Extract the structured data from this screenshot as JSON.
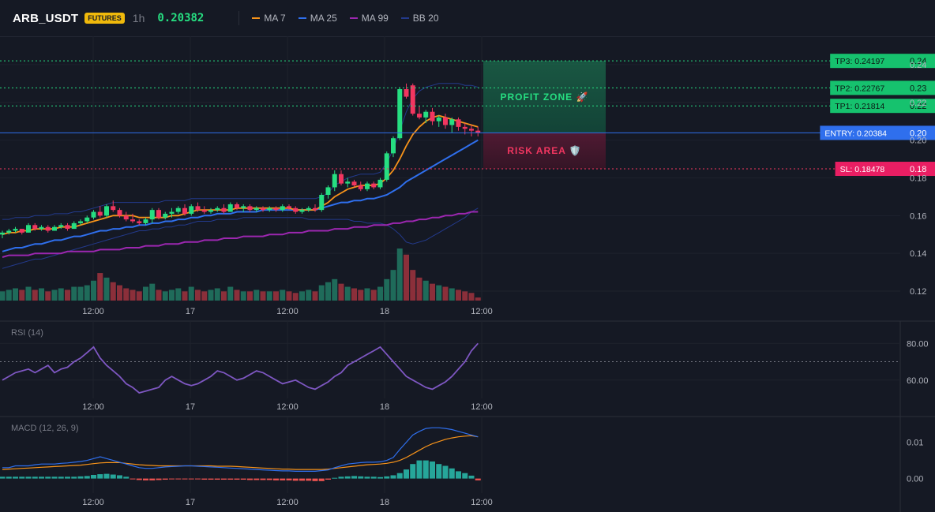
{
  "header": {
    "symbol": "ARB_USDT",
    "badge": "FUTURES",
    "timeframe": "1h",
    "price": "0.20382",
    "legend": [
      {
        "label": "MA 7",
        "color": "#f7931a"
      },
      {
        "label": "MA 25",
        "color": "#2f6fed"
      },
      {
        "label": "MA 99",
        "color": "#9c27b0"
      },
      {
        "label": "BB 20",
        "color": "#233a8c"
      }
    ]
  },
  "colors": {
    "up": "#26de81",
    "down": "#f23660",
    "vol_up": "#1f6b5a",
    "vol_down": "#8b2f3a",
    "entry": "#2f6fed",
    "tp": "#26de81",
    "sl": "#f23660"
  },
  "levels": {
    "tp3": {
      "label": "TP3: 0.24197",
      "axis": "0.24",
      "value": 0.24197
    },
    "tp2": {
      "label": "TP2: 0.22767",
      "axis": "0.23",
      "value": 0.22767
    },
    "tp1": {
      "label": "TP1: 0.21814",
      "axis": "0.22",
      "value": 0.21814
    },
    "entry": {
      "label": "ENTRY: 0.20384",
      "axis": "0.20",
      "value": 0.20384
    },
    "sl": {
      "label": "SL: 0.18478",
      "axis": "0.18",
      "value": 0.18478
    }
  },
  "zones": {
    "profit": {
      "label": "PROFIT ZONE 🚀"
    },
    "risk": {
      "label": "RISK AREA 🛡️"
    }
  },
  "x_axis_labels": [
    "12:00",
    "17",
    "12:00",
    "18",
    "12:00"
  ],
  "chart_data": [
    {
      "type": "candlestick",
      "ylim": [
        0.115,
        0.255
      ],
      "y_ticks": [
        "0.12",
        "0.14",
        "0.16",
        "0.18",
        "0.20",
        "0.22",
        "0.24"
      ],
      "candles": [
        [
          0.15,
          0.152,
          0.148,
          0.151
        ],
        [
          0.151,
          0.153,
          0.15,
          0.152
        ],
        [
          0.152,
          0.154,
          0.151,
          0.153
        ],
        [
          0.153,
          0.153,
          0.15,
          0.151
        ],
        [
          0.151,
          0.156,
          0.151,
          0.155
        ],
        [
          0.155,
          0.156,
          0.152,
          0.153
        ],
        [
          0.153,
          0.155,
          0.152,
          0.154
        ],
        [
          0.154,
          0.155,
          0.151,
          0.152
        ],
        [
          0.152,
          0.155,
          0.152,
          0.154
        ],
        [
          0.154,
          0.156,
          0.153,
          0.155
        ],
        [
          0.155,
          0.156,
          0.152,
          0.153
        ],
        [
          0.153,
          0.157,
          0.153,
          0.156
        ],
        [
          0.156,
          0.158,
          0.155,
          0.157
        ],
        [
          0.157,
          0.16,
          0.156,
          0.159
        ],
        [
          0.159,
          0.163,
          0.158,
          0.162
        ],
        [
          0.162,
          0.165,
          0.159,
          0.16
        ],
        [
          0.16,
          0.166,
          0.159,
          0.165
        ],
        [
          0.165,
          0.168,
          0.162,
          0.163
        ],
        [
          0.163,
          0.164,
          0.159,
          0.16
        ],
        [
          0.16,
          0.162,
          0.157,
          0.158
        ],
        [
          0.158,
          0.161,
          0.156,
          0.157
        ],
        [
          0.157,
          0.158,
          0.155,
          0.156
        ],
        [
          0.156,
          0.159,
          0.155,
          0.158
        ],
        [
          0.158,
          0.164,
          0.156,
          0.163
        ],
        [
          0.163,
          0.164,
          0.158,
          0.159
        ],
        [
          0.159,
          0.162,
          0.158,
          0.161
        ],
        [
          0.161,
          0.164,
          0.159,
          0.162
        ],
        [
          0.162,
          0.165,
          0.161,
          0.164
        ],
        [
          0.164,
          0.166,
          0.16,
          0.161
        ],
        [
          0.161,
          0.166,
          0.16,
          0.165
        ],
        [
          0.165,
          0.167,
          0.162,
          0.163
        ],
        [
          0.163,
          0.165,
          0.161,
          0.162
        ],
        [
          0.162,
          0.164,
          0.161,
          0.163
        ],
        [
          0.163,
          0.165,
          0.162,
          0.164
        ],
        [
          0.164,
          0.166,
          0.161,
          0.162
        ],
        [
          0.162,
          0.167,
          0.162,
          0.166
        ],
        [
          0.166,
          0.167,
          0.163,
          0.164
        ],
        [
          0.164,
          0.166,
          0.162,
          0.165
        ],
        [
          0.165,
          0.166,
          0.162,
          0.163
        ],
        [
          0.163,
          0.165,
          0.162,
          0.164
        ],
        [
          0.164,
          0.165,
          0.162,
          0.163
        ],
        [
          0.163,
          0.165,
          0.162,
          0.164
        ],
        [
          0.164,
          0.165,
          0.162,
          0.163
        ],
        [
          0.163,
          0.166,
          0.162,
          0.165
        ],
        [
          0.165,
          0.166,
          0.163,
          0.164
        ],
        [
          0.164,
          0.165,
          0.161,
          0.162
        ],
        [
          0.162,
          0.164,
          0.161,
          0.163
        ],
        [
          0.163,
          0.165,
          0.162,
          0.164
        ],
        [
          0.164,
          0.166,
          0.162,
          0.163
        ],
        [
          0.163,
          0.172,
          0.162,
          0.171
        ],
        [
          0.171,
          0.176,
          0.169,
          0.175
        ],
        [
          0.175,
          0.184,
          0.173,
          0.182
        ],
        [
          0.182,
          0.184,
          0.176,
          0.177
        ],
        [
          0.177,
          0.18,
          0.175,
          0.178
        ],
        [
          0.178,
          0.179,
          0.175,
          0.176
        ],
        [
          0.176,
          0.178,
          0.173,
          0.174
        ],
        [
          0.174,
          0.178,
          0.173,
          0.177
        ],
        [
          0.177,
          0.178,
          0.174,
          0.175
        ],
        [
          0.175,
          0.18,
          0.174,
          0.179
        ],
        [
          0.179,
          0.194,
          0.178,
          0.193
        ],
        [
          0.193,
          0.202,
          0.191,
          0.201
        ],
        [
          0.201,
          0.228,
          0.2,
          0.227
        ],
        [
          0.227,
          0.23,
          0.222,
          0.223
        ],
        [
          0.229,
          0.23,
          0.213,
          0.214
        ],
        [
          0.214,
          0.218,
          0.211,
          0.212
        ],
        [
          0.212,
          0.216,
          0.209,
          0.215
        ],
        [
          0.215,
          0.217,
          0.208,
          0.21
        ],
        [
          0.21,
          0.213,
          0.207,
          0.212
        ],
        [
          0.212,
          0.214,
          0.206,
          0.208
        ],
        [
          0.208,
          0.212,
          0.204,
          0.211
        ],
        [
          0.211,
          0.212,
          0.205,
          0.207
        ],
        [
          0.207,
          0.209,
          0.203,
          0.206
        ],
        [
          0.206,
          0.208,
          0.202,
          0.205
        ],
        [
          0.205,
          0.207,
          0.202,
          0.204
        ]
      ],
      "volumes": [
        6,
        7,
        8,
        7,
        9,
        7,
        8,
        6,
        7,
        8,
        7,
        9,
        9,
        10,
        13,
        18,
        15,
        12,
        10,
        8,
        7,
        6,
        9,
        11,
        7,
        6,
        7,
        8,
        6,
        9,
        7,
        6,
        7,
        8,
        6,
        9,
        7,
        6,
        6,
        7,
        6,
        6,
        6,
        7,
        6,
        5,
        6,
        7,
        6,
        10,
        12,
        14,
        11,
        9,
        8,
        7,
        8,
        7,
        9,
        14,
        20,
        34,
        30,
        20,
        15,
        13,
        11,
        10,
        9,
        8,
        7,
        6,
        5,
        2
      ],
      "ma7": [
        0.15,
        0.151,
        0.151,
        0.152,
        0.152,
        0.153,
        0.153,
        0.153,
        0.153,
        0.154,
        0.154,
        0.154,
        0.155,
        0.156,
        0.157,
        0.158,
        0.159,
        0.16,
        0.16,
        0.16,
        0.16,
        0.159,
        0.159,
        0.159,
        0.159,
        0.159,
        0.16,
        0.16,
        0.161,
        0.162,
        0.163,
        0.163,
        0.163,
        0.163,
        0.163,
        0.163,
        0.164,
        0.164,
        0.164,
        0.164,
        0.164,
        0.164,
        0.164,
        0.164,
        0.164,
        0.163,
        0.163,
        0.163,
        0.163,
        0.165,
        0.167,
        0.17,
        0.172,
        0.174,
        0.175,
        0.176,
        0.176,
        0.176,
        0.177,
        0.18,
        0.184,
        0.19,
        0.197,
        0.203,
        0.207,
        0.21,
        0.212,
        0.213,
        0.212,
        0.211,
        0.21,
        0.209,
        0.208,
        0.207
      ],
      "ma25": [
        0.141,
        0.142,
        0.143,
        0.143,
        0.144,
        0.145,
        0.145,
        0.146,
        0.147,
        0.147,
        0.148,
        0.149,
        0.149,
        0.15,
        0.151,
        0.152,
        0.152,
        0.153,
        0.153,
        0.154,
        0.154,
        0.155,
        0.155,
        0.156,
        0.156,
        0.157,
        0.157,
        0.158,
        0.158,
        0.159,
        0.159,
        0.16,
        0.16,
        0.161,
        0.161,
        0.161,
        0.162,
        0.162,
        0.162,
        0.162,
        0.163,
        0.163,
        0.163,
        0.163,
        0.163,
        0.163,
        0.163,
        0.163,
        0.163,
        0.164,
        0.165,
        0.166,
        0.167,
        0.167,
        0.168,
        0.168,
        0.169,
        0.169,
        0.17,
        0.171,
        0.173,
        0.175,
        0.178,
        0.18,
        0.182,
        0.184,
        0.186,
        0.188,
        0.19,
        0.192,
        0.194,
        0.196,
        0.198,
        0.2
      ],
      "ma99": [
        0.138,
        0.139,
        0.139,
        0.139,
        0.139,
        0.14,
        0.14,
        0.14,
        0.14,
        0.14,
        0.141,
        0.141,
        0.141,
        0.141,
        0.141,
        0.142,
        0.142,
        0.142,
        0.142,
        0.143,
        0.143,
        0.143,
        0.144,
        0.144,
        0.144,
        0.145,
        0.145,
        0.145,
        0.146,
        0.146,
        0.146,
        0.147,
        0.147,
        0.147,
        0.148,
        0.148,
        0.148,
        0.149,
        0.149,
        0.149,
        0.149,
        0.15,
        0.15,
        0.15,
        0.151,
        0.151,
        0.151,
        0.152,
        0.152,
        0.152,
        0.152,
        0.153,
        0.153,
        0.153,
        0.154,
        0.154,
        0.154,
        0.155,
        0.155,
        0.155,
        0.156,
        0.156,
        0.157,
        0.157,
        0.158,
        0.158,
        0.159,
        0.159,
        0.16,
        0.16,
        0.161,
        0.161,
        0.162,
        0.162
      ],
      "bb_upper": [
        0.158,
        0.158,
        0.159,
        0.159,
        0.159,
        0.16,
        0.16,
        0.16,
        0.161,
        0.161,
        0.161,
        0.162,
        0.162,
        0.163,
        0.164,
        0.165,
        0.166,
        0.167,
        0.167,
        0.167,
        0.167,
        0.167,
        0.167,
        0.167,
        0.167,
        0.168,
        0.168,
        0.168,
        0.168,
        0.169,
        0.169,
        0.169,
        0.169,
        0.169,
        0.169,
        0.169,
        0.169,
        0.169,
        0.169,
        0.169,
        0.169,
        0.169,
        0.169,
        0.169,
        0.169,
        0.169,
        0.169,
        0.169,
        0.169,
        0.17,
        0.172,
        0.176,
        0.178,
        0.18,
        0.181,
        0.182,
        0.182,
        0.182,
        0.183,
        0.188,
        0.195,
        0.205,
        0.215,
        0.222,
        0.226,
        0.228,
        0.229,
        0.23,
        0.23,
        0.23,
        0.23,
        0.229,
        0.229,
        0.228
      ],
      "bb_lower": [
        0.132,
        0.133,
        0.134,
        0.135,
        0.136,
        0.137,
        0.137,
        0.138,
        0.139,
        0.14,
        0.141,
        0.142,
        0.143,
        0.144,
        0.145,
        0.146,
        0.147,
        0.148,
        0.149,
        0.15,
        0.151,
        0.152,
        0.152,
        0.153,
        0.153,
        0.154,
        0.154,
        0.155,
        0.155,
        0.156,
        0.157,
        0.157,
        0.157,
        0.158,
        0.158,
        0.158,
        0.158,
        0.159,
        0.159,
        0.159,
        0.159,
        0.159,
        0.159,
        0.159,
        0.159,
        0.159,
        0.159,
        0.158,
        0.158,
        0.158,
        0.158,
        0.158,
        0.158,
        0.158,
        0.157,
        0.157,
        0.156,
        0.156,
        0.156,
        0.155,
        0.153,
        0.15,
        0.146,
        0.145,
        0.146,
        0.147,
        0.149,
        0.151,
        0.153,
        0.155,
        0.157,
        0.159,
        0.162,
        0.164
      ]
    },
    {
      "type": "line",
      "label": "RSI (14)",
      "ylim": [
        50,
        90
      ],
      "y_ticks": [
        "80.00",
        "60.00"
      ],
      "reference": 70,
      "values": [
        60,
        62,
        64,
        65,
        66,
        64,
        66,
        68,
        64,
        66,
        67,
        70,
        72,
        75,
        78,
        72,
        68,
        65,
        62,
        58,
        56,
        53,
        54,
        55,
        56,
        60,
        62,
        60,
        58,
        57,
        58,
        60,
        62,
        65,
        64,
        62,
        60,
        61,
        63,
        65,
        64,
        62,
        60,
        58,
        59,
        60,
        58,
        56,
        55,
        57,
        59,
        62,
        64,
        68,
        70,
        72,
        74,
        76,
        78,
        74,
        70,
        66,
        62,
        60,
        58,
        56,
        55,
        57,
        59,
        62,
        66,
        70,
        76,
        80
      ]
    },
    {
      "type": "histogram",
      "label": "MACD (12, 26, 9)",
      "ylim": [
        -0.004,
        0.016
      ],
      "y_ticks": [
        "0.01",
        "0.00"
      ],
      "hist": [
        0.0005,
        0.0005,
        0.0005,
        0.0005,
        0.0005,
        0.0005,
        0.0005,
        0.0005,
        0.0005,
        0.0005,
        0.0005,
        0.0005,
        0.0006,
        0.0007,
        0.001,
        0.0012,
        0.0013,
        0.0011,
        0.0009,
        0.0005,
        -0.0002,
        -0.0004,
        -0.0005,
        -0.0005,
        -0.0004,
        -0.0003,
        -0.0002,
        -0.0002,
        -0.0001,
        -0.0001,
        -0.0002,
        -0.0003,
        -0.0003,
        -0.0003,
        -0.0003,
        -0.0003,
        -0.0003,
        -0.0003,
        -0.0004,
        -0.0004,
        -0.0004,
        -0.0004,
        -0.0005,
        -0.0005,
        -0.0005,
        -0.0006,
        -0.0006,
        -0.0006,
        -0.0007,
        -0.0007,
        -0.0003,
        0.0002,
        0.0005,
        0.0006,
        0.0007,
        0.0006,
        0.0005,
        0.0005,
        0.0004,
        0.0006,
        0.0009,
        0.0015,
        0.0025,
        0.004,
        0.005,
        0.005,
        0.0047,
        0.004,
        0.0035,
        0.0028,
        0.002,
        0.0015,
        0.0008,
        -0.0005
      ],
      "macd": [
        0.003,
        0.003,
        0.0035,
        0.0035,
        0.0035,
        0.0038,
        0.004,
        0.004,
        0.004,
        0.0042,
        0.0043,
        0.0045,
        0.0047,
        0.005,
        0.0055,
        0.006,
        0.0055,
        0.005,
        0.0045,
        0.004,
        0.0035,
        0.003,
        0.0028,
        0.0028,
        0.003,
        0.0032,
        0.0033,
        0.0034,
        0.0035,
        0.0035,
        0.0034,
        0.0033,
        0.0032,
        0.0031,
        0.003,
        0.0029,
        0.0028,
        0.0027,
        0.0026,
        0.0025,
        0.0024,
        0.0023,
        0.0022,
        0.0021,
        0.0021,
        0.002,
        0.002,
        0.002,
        0.002,
        0.0022,
        0.0024,
        0.003,
        0.0035,
        0.004,
        0.0042,
        0.0044,
        0.0045,
        0.0045,
        0.0046,
        0.005,
        0.0058,
        0.008,
        0.01,
        0.012,
        0.013,
        0.0138,
        0.014,
        0.014,
        0.0138,
        0.0135,
        0.013,
        0.0125,
        0.012,
        0.0115
      ],
      "signal": [
        0.0025,
        0.0026,
        0.0027,
        0.0028,
        0.0029,
        0.003,
        0.0031,
        0.0032,
        0.0033,
        0.0034,
        0.0035,
        0.0036,
        0.0037,
        0.0039,
        0.0041,
        0.0043,
        0.0044,
        0.0044,
        0.0044,
        0.0042,
        0.004,
        0.0038,
        0.0037,
        0.0036,
        0.0035,
        0.0035,
        0.0035,
        0.0035,
        0.0035,
        0.0035,
        0.0035,
        0.0035,
        0.0035,
        0.0034,
        0.0034,
        0.0034,
        0.0033,
        0.0032,
        0.0031,
        0.003,
        0.0029,
        0.0028,
        0.0027,
        0.0026,
        0.0026,
        0.0025,
        0.0025,
        0.0025,
        0.0025,
        0.0025,
        0.0026,
        0.0028,
        0.003,
        0.0032,
        0.0034,
        0.0036,
        0.0038,
        0.0039,
        0.004,
        0.0042,
        0.0045,
        0.005,
        0.0058,
        0.0068,
        0.0078,
        0.0088,
        0.0096,
        0.0102,
        0.0108,
        0.0112,
        0.0115,
        0.0117,
        0.0118,
        0.0115
      ]
    }
  ]
}
